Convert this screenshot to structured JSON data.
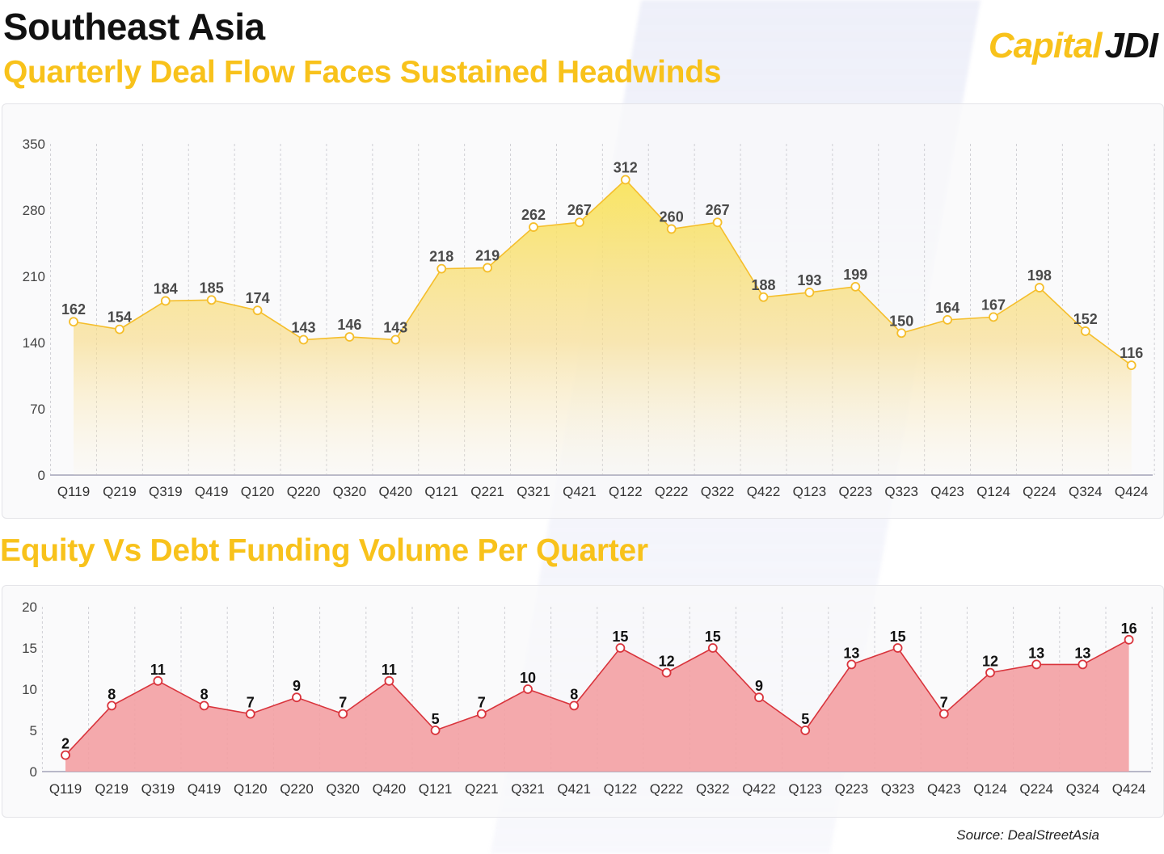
{
  "header": {
    "title": "Southeast Asia",
    "logo_text": "Capital",
    "logo_mark": "JDI"
  },
  "source": "Source: DealStreetAsia",
  "colors": {
    "accent": "#F8C21B",
    "deal_line": "#F5BE2B",
    "funding_line": "#D9343C",
    "funding_fill": "#F3A0A3"
  },
  "chart_data": [
    {
      "type": "area",
      "title": "Quarterly Deal Flow Faces Sustained Headwinds",
      "xlabel": "",
      "ylabel": "",
      "categories": [
        "Q119",
        "Q219",
        "Q319",
        "Q419",
        "Q120",
        "Q220",
        "Q320",
        "Q420",
        "Q121",
        "Q221",
        "Q321",
        "Q421",
        "Q122",
        "Q222",
        "Q322",
        "Q422",
        "Q123",
        "Q223",
        "Q323",
        "Q423",
        "Q124",
        "Q224",
        "Q324",
        "Q424"
      ],
      "values": [
        162,
        154,
        184,
        185,
        174,
        143,
        146,
        143,
        218,
        219,
        262,
        267,
        312,
        260,
        267,
        188,
        193,
        199,
        150,
        164,
        167,
        198,
        152,
        116
      ],
      "yticks": [
        0,
        70,
        140,
        210,
        280,
        350
      ],
      "ylim": [
        0,
        350
      ],
      "grid": "vertical-dashed",
      "legend": "none"
    },
    {
      "type": "area",
      "title": "Equity Vs Debt Funding Volume Per Quarter",
      "xlabel": "",
      "ylabel": "",
      "categories": [
        "Q119",
        "Q219",
        "Q319",
        "Q419",
        "Q120",
        "Q220",
        "Q320",
        "Q420",
        "Q121",
        "Q221",
        "Q321",
        "Q421",
        "Q122",
        "Q222",
        "Q322",
        "Q422",
        "Q123",
        "Q223",
        "Q323",
        "Q423",
        "Q124",
        "Q224",
        "Q324",
        "Q424"
      ],
      "values": [
        2,
        8,
        11,
        8,
        7,
        9,
        7,
        11,
        5,
        7,
        10,
        8,
        15,
        12,
        15,
        9,
        5,
        13,
        15,
        7,
        12,
        13,
        13,
        16
      ],
      "yticks": [
        0,
        5,
        10,
        15,
        20
      ],
      "ylim": [
        0,
        20
      ],
      "grid": "vertical-dashed",
      "legend": "none"
    }
  ]
}
